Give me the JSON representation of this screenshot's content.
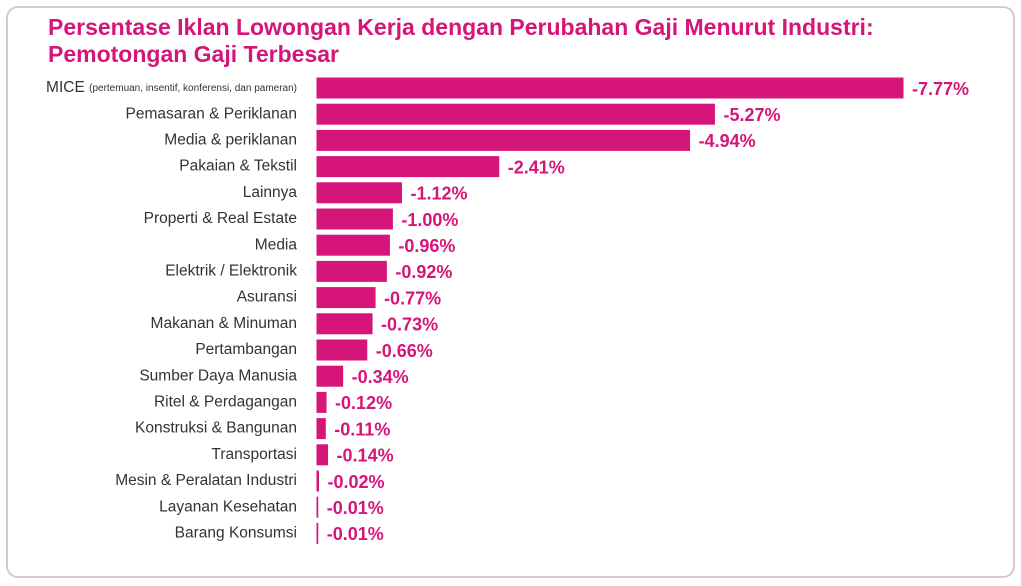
{
  "chart_data": {
    "type": "bar",
    "orientation": "horizontal",
    "title": "Persentase Iklan Lowongan Kerja dengan Perubahan Gaji Menurut Industri: Pemotongan Gaji Terbesar",
    "categories": [
      "MICE (pertemuan, insentif, konferensi, dan pameran)",
      "Pemasaran & Periklanan",
      "Media & periklanan",
      "Pakaian & Tekstil",
      "Lainnya",
      "Properti & Real Estate",
      "Media",
      "Elektrik / Elektronik",
      "Asuransi",
      "Makanan & Minuman",
      "Pertambangan",
      "Sumber Daya Manusia",
      "Ritel & Perdagangan",
      "Konstruksi & Bangunan",
      "Transportasi",
      "Mesin & Peralatan Industri",
      "Layanan Kesehatan",
      "Barang Konsumsi"
    ],
    "values": [
      -7.77,
      -5.27,
      -4.94,
      -2.41,
      -1.12,
      -1.0,
      -0.96,
      -0.92,
      -0.77,
      -0.73,
      -0.66,
      -0.34,
      -0.12,
      -0.11,
      -0.14,
      -0.02,
      -0.01,
      -0.01
    ],
    "value_labels": [
      "-7.77%",
      "-5.27%",
      "-4.94%",
      "-2.41%",
      "-1.12%",
      "-1.00%",
      "-0.96%",
      "-0.92%",
      "-0.77%",
      "-0.73%",
      "-0.66%",
      "-0.34%",
      "-0.12%",
      "-0.11%",
      "-0.14%",
      "-0.02%",
      "-0.01%",
      "-0.01%"
    ],
    "color": "#d6157b"
  }
}
